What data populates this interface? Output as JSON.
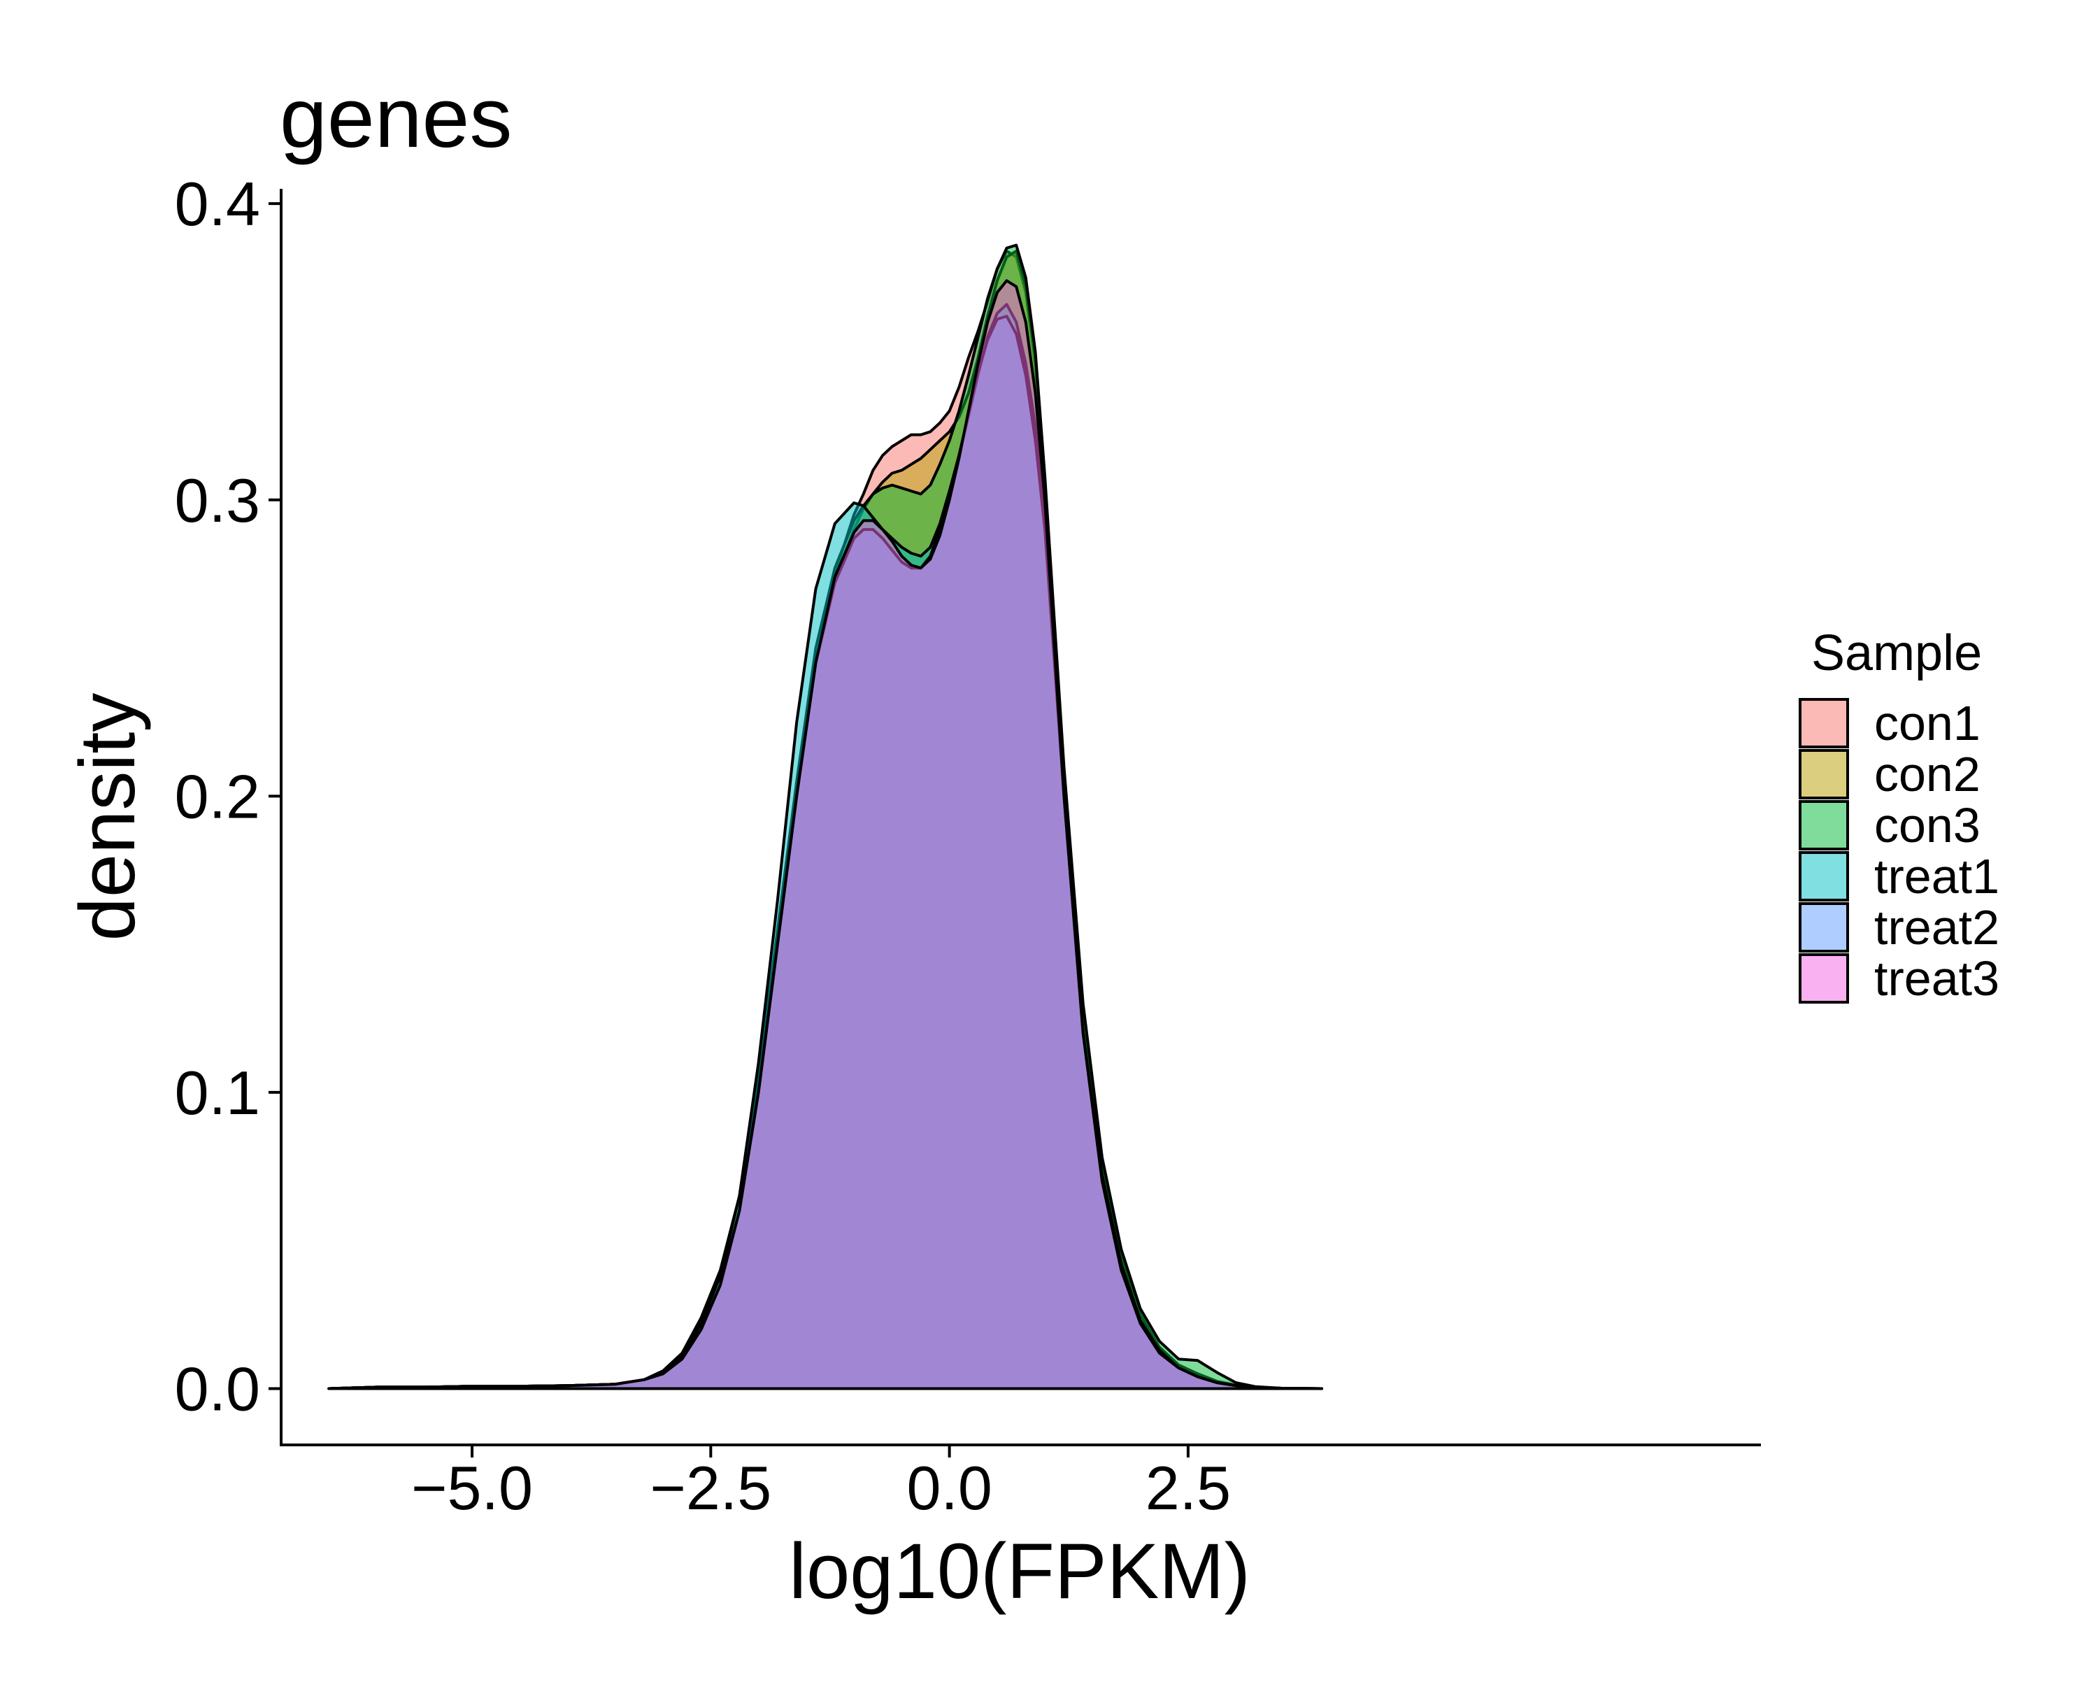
{
  "chart_data": {
    "type": "area",
    "subtype": "density",
    "title": "genes",
    "xlabel": "log10(FPKM)",
    "ylabel": "density",
    "xlim": [
      -7.0,
      8.5
    ],
    "ylim": [
      -0.019,
      0.405
    ],
    "x_ticks": [
      -5.0,
      -2.5,
      0.0,
      2.5
    ],
    "x_tick_labels": [
      "−5.0",
      "−2.5",
      "0.0",
      "2.5"
    ],
    "y_ticks": [
      0.0,
      0.1,
      0.2,
      0.3,
      0.4
    ],
    "y_tick_labels": [
      "0.0",
      "0.1",
      "0.2",
      "0.3",
      "0.4"
    ],
    "grid": false,
    "fill_opacity": 0.5,
    "outline_color": "#000000",
    "legend": {
      "title": "Sample",
      "position": "right"
    },
    "x": [
      -6.5,
      -6.0,
      -5.5,
      -5.0,
      -4.5,
      -4.0,
      -3.5,
      -3.2,
      -3.0,
      -2.8,
      -2.6,
      -2.4,
      -2.2,
      -2.0,
      -1.8,
      -1.6,
      -1.4,
      -1.2,
      -1.0,
      -0.9,
      -0.8,
      -0.7,
      -0.6,
      -0.5,
      -0.4,
      -0.3,
      -0.2,
      -0.1,
      0.0,
      0.1,
      0.2,
      0.3,
      0.4,
      0.5,
      0.6,
      0.7,
      0.8,
      0.9,
      1.0,
      1.2,
      1.4,
      1.6,
      1.8,
      2.0,
      2.2,
      2.4,
      2.6,
      2.8,
      3.0,
      3.2,
      3.5,
      3.9
    ],
    "series": [
      {
        "name": "con1",
        "color": "#F8766D",
        "values": [
          0.0,
          0.0005,
          0.0005,
          0.0008,
          0.0008,
          0.001,
          0.0015,
          0.003,
          0.005,
          0.01,
          0.02,
          0.035,
          0.06,
          0.1,
          0.15,
          0.2,
          0.245,
          0.275,
          0.295,
          0.302,
          0.31,
          0.315,
          0.318,
          0.32,
          0.322,
          0.322,
          0.323,
          0.326,
          0.33,
          0.338,
          0.348,
          0.357,
          0.367,
          0.378,
          0.384,
          0.382,
          0.37,
          0.345,
          0.3,
          0.2,
          0.12,
          0.07,
          0.04,
          0.022,
          0.012,
          0.007,
          0.004,
          0.002,
          0.001,
          0.0004,
          0.0001,
          0.0
        ]
      },
      {
        "name": "con2",
        "color": "#B79F00",
        "values": [
          0.0,
          0.0005,
          0.0005,
          0.0008,
          0.0008,
          0.001,
          0.0015,
          0.003,
          0.005,
          0.01,
          0.02,
          0.035,
          0.06,
          0.1,
          0.15,
          0.2,
          0.245,
          0.273,
          0.29,
          0.297,
          0.302,
          0.306,
          0.309,
          0.31,
          0.312,
          0.314,
          0.317,
          0.32,
          0.323,
          0.328,
          0.336,
          0.348,
          0.362,
          0.374,
          0.382,
          0.384,
          0.372,
          0.348,
          0.305,
          0.205,
          0.125,
          0.075,
          0.045,
          0.025,
          0.014,
          0.008,
          0.005,
          0.0025,
          0.0012,
          0.0005,
          0.0001,
          0.0
        ]
      },
      {
        "name": "con3",
        "color": "#00BA38",
        "values": [
          0.0,
          0.0005,
          0.0005,
          0.0008,
          0.0008,
          0.001,
          0.0015,
          0.003,
          0.006,
          0.012,
          0.024,
          0.04,
          0.065,
          0.105,
          0.155,
          0.205,
          0.25,
          0.277,
          0.293,
          0.298,
          0.302,
          0.304,
          0.305,
          0.304,
          0.303,
          0.302,
          0.305,
          0.312,
          0.32,
          0.33,
          0.342,
          0.355,
          0.368,
          0.378,
          0.385,
          0.386,
          0.375,
          0.35,
          0.308,
          0.21,
          0.13,
          0.078,
          0.047,
          0.027,
          0.016,
          0.01,
          0.0095,
          0.0055,
          0.002,
          0.0007,
          0.0001,
          0.0
        ]
      },
      {
        "name": "treat1",
        "color": "#00BFC4",
        "values": [
          0.0,
          0.0005,
          0.0005,
          0.0008,
          0.0008,
          0.001,
          0.0015,
          0.003,
          0.005,
          0.011,
          0.022,
          0.038,
          0.065,
          0.11,
          0.165,
          0.225,
          0.27,
          0.292,
          0.299,
          0.298,
          0.294,
          0.29,
          0.287,
          0.284,
          0.282,
          0.281,
          0.284,
          0.292,
          0.303,
          0.315,
          0.328,
          0.342,
          0.355,
          0.363,
          0.366,
          0.36,
          0.346,
          0.325,
          0.292,
          0.2,
          0.12,
          0.072,
          0.042,
          0.023,
          0.013,
          0.007,
          0.004,
          0.002,
          0.001,
          0.0004,
          0.0001,
          0.0
        ]
      },
      {
        "name": "treat2",
        "color": "#619CFF",
        "values": [
          0.0,
          0.0005,
          0.0005,
          0.0008,
          0.0008,
          0.001,
          0.0015,
          0.003,
          0.005,
          0.01,
          0.02,
          0.035,
          0.06,
          0.1,
          0.15,
          0.2,
          0.245,
          0.272,
          0.287,
          0.29,
          0.29,
          0.287,
          0.283,
          0.279,
          0.277,
          0.277,
          0.281,
          0.29,
          0.302,
          0.315,
          0.329,
          0.343,
          0.354,
          0.361,
          0.362,
          0.356,
          0.342,
          0.32,
          0.29,
          0.2,
          0.12,
          0.07,
          0.04,
          0.022,
          0.012,
          0.007,
          0.004,
          0.002,
          0.001,
          0.0004,
          0.0001,
          0.0
        ]
      },
      {
        "name": "treat3",
        "color": "#F564E3",
        "values": [
          0.0,
          0.0005,
          0.0005,
          0.0008,
          0.0008,
          0.001,
          0.0015,
          0.003,
          0.005,
          0.01,
          0.02,
          0.035,
          0.06,
          0.1,
          0.15,
          0.2,
          0.245,
          0.274,
          0.289,
          0.293,
          0.293,
          0.29,
          0.286,
          0.281,
          0.278,
          0.277,
          0.28,
          0.288,
          0.3,
          0.314,
          0.33,
          0.346,
          0.36,
          0.37,
          0.374,
          0.372,
          0.36,
          0.336,
          0.3,
          0.2,
          0.12,
          0.07,
          0.04,
          0.022,
          0.012,
          0.007,
          0.004,
          0.002,
          0.001,
          0.0004,
          0.0001,
          0.0
        ]
      }
    ]
  }
}
